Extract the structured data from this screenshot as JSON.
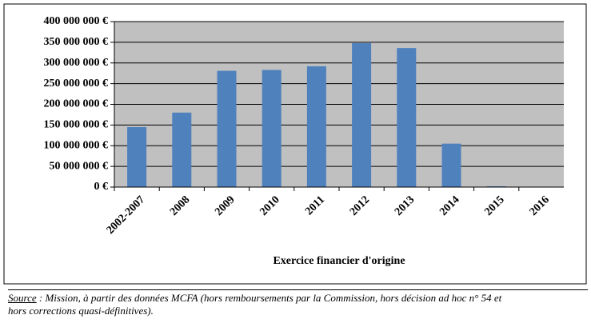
{
  "chart_data": {
    "type": "bar",
    "x_label": "Exercice financier d'origine",
    "categories": [
      "2002-2007",
      "2008",
      "2009",
      "2010",
      "2011",
      "2012",
      "2013",
      "2014",
      "2015",
      "2016"
    ],
    "values": [
      145000000,
      180000000,
      281000000,
      283000000,
      292000000,
      348000000,
      336000000,
      105000000,
      2000000,
      1000000
    ],
    "color": "#4f81bd",
    "ylim": [
      0,
      400000000
    ],
    "yticks": [
      {
        "value": 0,
        "label": "0 €"
      },
      {
        "value": 50000000,
        "label": "50 000 000 €"
      },
      {
        "value": 100000000,
        "label": "100 000 000 €"
      },
      {
        "value": 150000000,
        "label": "150 000 000 €"
      },
      {
        "value": 200000000,
        "label": "200 000 000 €"
      },
      {
        "value": 250000000,
        "label": "250 000 000 €"
      },
      {
        "value": 300000000,
        "label": "300 000 000 €"
      },
      {
        "value": 350000000,
        "label": "350 000 000 €"
      },
      {
        "value": 400000000,
        "label": "400 000 000 €"
      }
    ],
    "grid": true
  },
  "source": {
    "label": "Source",
    "lines": [
      ": Mission, à partir des données MCFA (hors remboursements par la Commission, hors décision ad hoc n° 54 et",
      "hors corrections quasi-définitives)."
    ]
  }
}
